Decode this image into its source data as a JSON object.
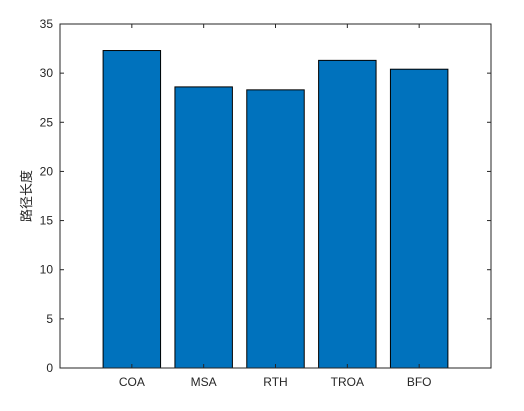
{
  "chart_data": {
    "type": "bar",
    "categories": [
      "COA",
      "MSA",
      "RTH",
      "TROA",
      "BFO"
    ],
    "values": [
      32.3,
      28.6,
      28.3,
      31.3,
      30.4
    ],
    "title": "",
    "xlabel": "",
    "ylabel": "路径长度",
    "ylim": [
      0,
      35
    ],
    "yticks": [
      0,
      5,
      10,
      15,
      20,
      25,
      30,
      35
    ],
    "grid": false,
    "bar_color": "#0072BD",
    "bar_edge_color": "#000000",
    "axis_color": "#262626"
  }
}
